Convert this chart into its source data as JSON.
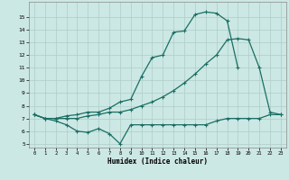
{
  "bg_color": "#cce8e4",
  "grid_color": "#b0ccc8",
  "line_color": "#1a6e64",
  "line1_y": [
    7.3,
    7.0,
    7.0,
    7.2,
    7.3,
    7.5,
    7.5,
    7.8,
    8.3,
    8.5,
    10.3,
    11.8,
    12.0,
    13.8,
    13.9,
    15.2,
    15.4,
    15.3,
    14.7,
    11.0,
    null,
    null,
    null,
    null
  ],
  "line2_y": [
    7.3,
    7.0,
    7.0,
    7.0,
    7.0,
    7.2,
    7.3,
    7.5,
    7.5,
    7.7,
    8.0,
    8.3,
    8.7,
    9.2,
    9.8,
    10.5,
    11.3,
    12.0,
    13.2,
    13.3,
    13.2,
    11.0,
    7.5,
    7.3
  ],
  "line3_y": [
    7.3,
    7.0,
    6.8,
    6.5,
    6.0,
    5.9,
    6.2,
    5.8,
    5.0,
    6.5,
    6.5,
    6.5,
    6.5,
    6.5,
    6.5,
    6.5,
    6.5,
    6.8,
    7.0,
    7.0,
    7.0,
    7.0,
    7.3,
    7.3
  ],
  "xlim": [
    -0.5,
    23.5
  ],
  "ylim": [
    4.7,
    16.2
  ],
  "yticks": [
    5,
    6,
    7,
    8,
    9,
    10,
    11,
    12,
    13,
    14,
    15
  ],
  "xticks": [
    0,
    1,
    2,
    3,
    4,
    5,
    6,
    7,
    8,
    9,
    10,
    11,
    12,
    13,
    14,
    15,
    16,
    17,
    18,
    19,
    20,
    21,
    22,
    23
  ],
  "xlabel": "Humidex (Indice chaleur)"
}
